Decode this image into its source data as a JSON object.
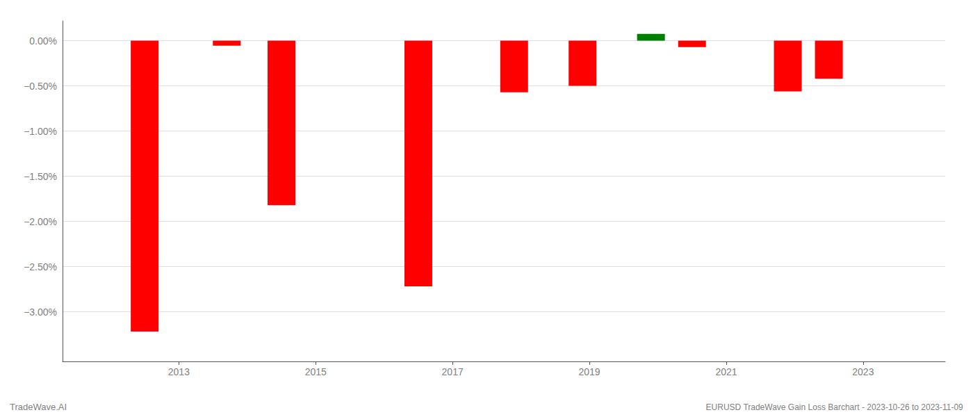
{
  "chart_data": {
    "type": "bar",
    "title": "EURUSD TradeWave Gain Loss Barchart - 2023-10-26 to 2023-11-09",
    "subtitle": "TradeWave.AI",
    "x": [
      2012.5,
      2013.7,
      2014.5,
      2016.5,
      2017.9,
      2018.9,
      2019.9,
      2020.5,
      2021.9,
      2022.5
    ],
    "values": [
      -3.22,
      -0.055,
      -1.82,
      -2.72,
      -0.57,
      -0.5,
      0.075,
      -0.07,
      -0.56,
      -0.42
    ],
    "colors": [
      "#ff0000",
      "#ff0000",
      "#ff0000",
      "#ff0000",
      "#ff0000",
      "#ff0000",
      "#008000",
      "#ff0000",
      "#ff0000",
      "#ff0000"
    ],
    "xlim": [
      2011.3,
      2024.2
    ],
    "xticks": [
      2013,
      2015,
      2017,
      2019,
      2021,
      2023
    ],
    "ylim": [
      -3.55,
      0.22
    ],
    "yticks": [
      {
        "value": 0.0,
        "label": "0.00%"
      },
      {
        "value": -0.5,
        "label": "−0.50%"
      },
      {
        "value": -1.0,
        "label": "−1.00%"
      },
      {
        "value": -1.5,
        "label": "−1.50%"
      },
      {
        "value": -2.0,
        "label": "−2.00%"
      },
      {
        "value": -2.5,
        "label": "−2.50%"
      },
      {
        "value": -3.0,
        "label": "−3.00%"
      }
    ],
    "grid": true
  }
}
